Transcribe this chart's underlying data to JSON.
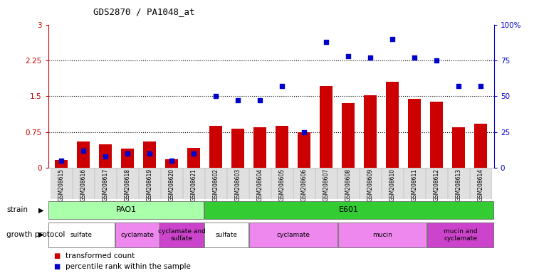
{
  "title": "GDS2870 / PA1048_at",
  "samples": [
    "GSM208615",
    "GSM208616",
    "GSM208617",
    "GSM208618",
    "GSM208619",
    "GSM208620",
    "GSM208621",
    "GSM208602",
    "GSM208603",
    "GSM208604",
    "GSM208605",
    "GSM208606",
    "GSM208607",
    "GSM208608",
    "GSM208609",
    "GSM208610",
    "GSM208611",
    "GSM208612",
    "GSM208613",
    "GSM208614"
  ],
  "transformed_count": [
    0.17,
    0.55,
    0.5,
    0.4,
    0.55,
    0.18,
    0.42,
    0.88,
    0.82,
    0.85,
    0.88,
    0.75,
    1.72,
    1.35,
    1.52,
    1.8,
    1.44,
    1.38,
    0.85,
    0.92
  ],
  "percentile_rank": [
    5,
    12,
    8,
    10,
    10,
    5,
    10,
    50,
    47,
    47,
    57,
    25,
    88,
    78,
    77,
    90,
    77,
    75,
    57,
    57
  ],
  "bar_color": "#cc0000",
  "dot_color": "#0000cc",
  "ylim_left": [
    0,
    3
  ],
  "ylim_right": [
    0,
    100
  ],
  "yticks_left": [
    0,
    0.75,
    1.5,
    2.25,
    3
  ],
  "yticks_right": [
    0,
    25,
    50,
    75,
    100
  ],
  "ytick_labels_left": [
    "0",
    "0.75",
    "1.5",
    "2.25",
    "3"
  ],
  "ytick_labels_right": [
    "0",
    "25",
    "50",
    "75",
    "100%"
  ],
  "strain_row": [
    {
      "label": "PAO1",
      "start": 0,
      "end": 7,
      "color": "#aaffaa"
    },
    {
      "label": "E601",
      "start": 7,
      "end": 20,
      "color": "#33cc33"
    }
  ],
  "growth_row": [
    {
      "label": "sulfate",
      "start": 0,
      "end": 3,
      "color": "#ffffff"
    },
    {
      "label": "cyclamate",
      "start": 3,
      "end": 5,
      "color": "#ee88ee"
    },
    {
      "label": "cyclamate and\nsulfate",
      "start": 5,
      "end": 7,
      "color": "#cc44cc"
    },
    {
      "label": "sulfate",
      "start": 7,
      "end": 9,
      "color": "#ffffff"
    },
    {
      "label": "cyclamate",
      "start": 9,
      "end": 13,
      "color": "#ee88ee"
    },
    {
      "label": "mucin",
      "start": 13,
      "end": 17,
      "color": "#ee88ee"
    },
    {
      "label": "mucin and\ncyclamate",
      "start": 17,
      "end": 20,
      "color": "#cc44cc"
    }
  ],
  "legend_items": [
    {
      "label": "transformed count",
      "color": "#cc0000"
    },
    {
      "label": "percentile rank within the sample",
      "color": "#0000cc"
    }
  ],
  "left_axis_color": "#cc0000",
  "right_axis_color": "#0000cc",
  "bg_color": "#ffffff"
}
